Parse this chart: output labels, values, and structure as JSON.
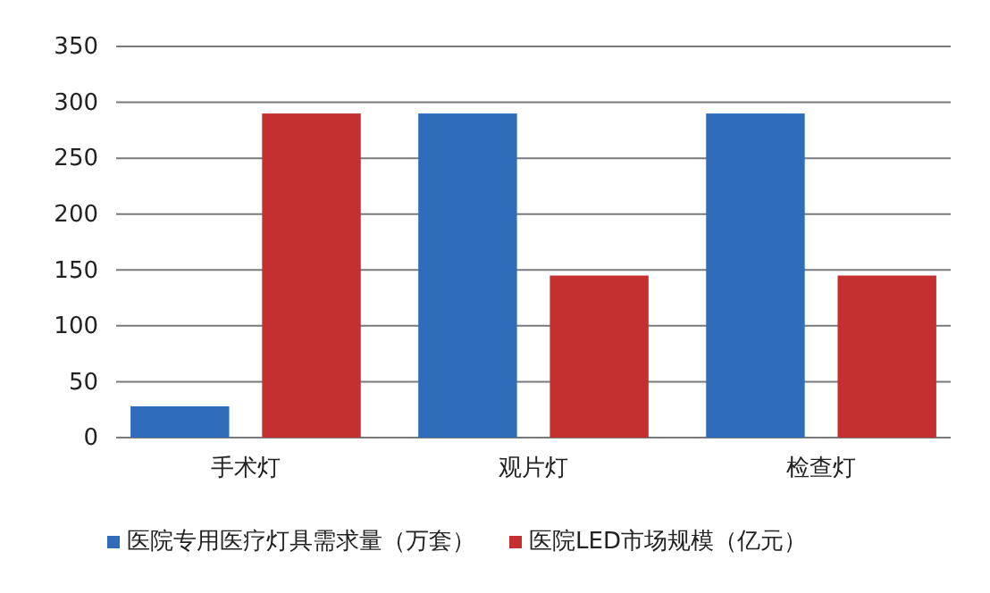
{
  "chart_data": {
    "type": "bar",
    "categories": [
      "手术灯",
      "观片灯",
      "检查灯"
    ],
    "series": [
      {
        "name": "医院专用医疗灯具需求量（万套）",
        "color": "#2f6cba",
        "values": [
          28,
          290,
          290
        ]
      },
      {
        "name": "医院LED市场规模（亿元）",
        "color": "#c4302f",
        "values": [
          290,
          145,
          145
        ]
      }
    ],
    "ylim": [
      0,
      350
    ],
    "yticks": [
      0,
      50,
      100,
      150,
      200,
      250,
      300,
      350
    ],
    "grid": "y",
    "legend": "bottom"
  }
}
